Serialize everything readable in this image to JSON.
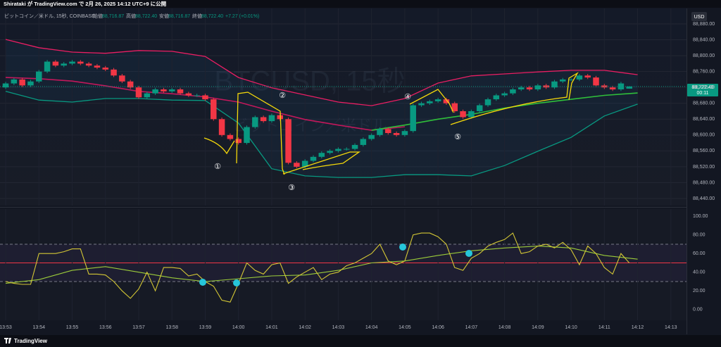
{
  "header": {
    "published": "Shirataki が TradingView.com で 2月 26, 2025 14:12 UTC+9 に公開",
    "symbol": "ビットコイン／米ドル, 15秒, COINBASE",
    "open_label": "始値",
    "open": "88,716.87",
    "high_label": "高値",
    "high": "88,722.40",
    "low_label": "安値",
    "low": "88,716.87",
    "close_label": "終値",
    "close": "88,722.40",
    "change": "+7.27 (+0.01%)",
    "watermark": "BTCUSD, 15秒",
    "watermark_sub": "ビットコイン／米ドル",
    "currency": "USD",
    "last_price": "88,722.40",
    "countdown": "00:11",
    "footer": "TradingView"
  },
  "annotations": [
    "①",
    "②",
    "③",
    "④",
    "⑤"
  ],
  "chart_data": [
    {
      "type": "candlestick",
      "up_color": "#089981",
      "down_color": "#f23645",
      "x": [
        833,
        833.25,
        833.5,
        833.75,
        834,
        834.25,
        834.5,
        834.75,
        835,
        835.25,
        835.5,
        835.75,
        836,
        836.25,
        836.5,
        836.75,
        837,
        837.25,
        837.5,
        837.75,
        838,
        838.25,
        838.5,
        838.75,
        839,
        839.25,
        839.5,
        839.75,
        840,
        840.25,
        840.5,
        840.75,
        841,
        841.25,
        841.5,
        841.75,
        842,
        842.25,
        842.5,
        842.75,
        843,
        843.25,
        843.5,
        843.75,
        844,
        844.25,
        844.5,
        844.75,
        845,
        845.25,
        845.5,
        845.75,
        846,
        846.25,
        846.5,
        846.75,
        847,
        847.25,
        847.5,
        847.75,
        848,
        848.25,
        848.5,
        848.75,
        849,
        849.25,
        849.5,
        849.75,
        850,
        850.25,
        850.5,
        850.75,
        851,
        851.25,
        851.5,
        851.75
      ],
      "candles": [
        [
          88720,
          88734,
          88716,
          88730
        ],
        [
          88730,
          88744,
          88726,
          88740
        ],
        [
          88740,
          88744,
          88721,
          88725
        ],
        [
          88725,
          88739,
          88721,
          88735
        ],
        [
          88735,
          88764,
          88731,
          88760
        ],
        [
          88760,
          88789,
          88756,
          88785
        ],
        [
          88785,
          88789,
          88771,
          88775
        ],
        [
          88775,
          88784,
          88771,
          88780
        ],
        [
          88780,
          88789,
          88776,
          88785
        ],
        [
          88785,
          88789,
          88776,
          88780
        ],
        [
          88780,
          88784,
          88771,
          88775
        ],
        [
          88775,
          88779,
          88766,
          88770
        ],
        [
          88770,
          88774,
          88761,
          88765
        ],
        [
          88765,
          88769,
          88746,
          88750
        ],
        [
          88750,
          88754,
          88731,
          88735
        ],
        [
          88735,
          88739,
          88716,
          88720
        ],
        [
          88720,
          88724,
          88691,
          88695
        ],
        [
          88695,
          88709,
          88691,
          88705
        ],
        [
          88705,
          88719,
          88701,
          88715
        ],
        [
          88715,
          88719,
          88706,
          88710
        ],
        [
          88710,
          88719,
          88706,
          88715
        ],
        [
          88715,
          88719,
          88701,
          88705
        ],
        [
          88705,
          88709,
          88696,
          88700
        ],
        [
          88700,
          88704,
          88696,
          88700
        ],
        [
          88700,
          88704,
          88686,
          88690
        ],
        [
          88690,
          88694,
          88636,
          88640
        ],
        [
          88640,
          88644,
          88596,
          88600
        ],
        [
          88600,
          88604,
          88586,
          88590
        ],
        [
          88590,
          88594,
          88576,
          88580
        ],
        [
          88580,
          88624,
          88576,
          88620
        ],
        [
          88620,
          88649,
          88616,
          88645
        ],
        [
          88645,
          88649,
          88631,
          88635
        ],
        [
          88635,
          88654,
          88631,
          88650
        ],
        [
          88650,
          88654,
          88636,
          88640
        ],
        [
          88640,
          88644,
          88526,
          88530
        ],
        [
          88530,
          88534,
          88516,
          88520
        ],
        [
          88520,
          88539,
          88516,
          88535
        ],
        [
          88535,
          88549,
          88531,
          88545
        ],
        [
          88545,
          88559,
          88541,
          88555
        ],
        [
          88555,
          88564,
          88551,
          88560
        ],
        [
          88560,
          88569,
          88556,
          88565
        ],
        [
          88565,
          88569,
          88561,
          88565
        ],
        [
          88565,
          88579,
          88561,
          88575
        ],
        [
          88575,
          88594,
          88571,
          88590
        ],
        [
          88590,
          88604,
          88586,
          88600
        ],
        [
          88600,
          88619,
          88596,
          88615
        ],
        [
          88615,
          88619,
          88601,
          88605
        ],
        [
          88605,
          88609,
          88596,
          88600
        ],
        [
          88600,
          88614,
          88596,
          88610
        ],
        [
          88610,
          88679,
          88606,
          88675
        ],
        [
          88675,
          88684,
          88671,
          88680
        ],
        [
          88680,
          88689,
          88676,
          88685
        ],
        [
          88685,
          88694,
          88681,
          88690
        ],
        [
          88690,
          88694,
          88676,
          88680
        ],
        [
          88680,
          88684,
          88656,
          88660
        ],
        [
          88660,
          88664,
          88641,
          88645
        ],
        [
          88645,
          88664,
          88641,
          88660
        ],
        [
          88660,
          88679,
          88656,
          88675
        ],
        [
          88675,
          88694,
          88671,
          88690
        ],
        [
          88690,
          88704,
          88686,
          88700
        ],
        [
          88700,
          88709,
          88696,
          88705
        ],
        [
          88705,
          88719,
          88701,
          88715
        ],
        [
          88715,
          88724,
          88711,
          88720
        ],
        [
          88720,
          88724,
          88711,
          88715
        ],
        [
          88715,
          88729,
          88711,
          88725
        ],
        [
          88725,
          88729,
          88716,
          88720
        ],
        [
          88720,
          88739,
          88716,
          88735
        ],
        [
          88735,
          88744,
          88731,
          88740
        ],
        [
          88740,
          88744,
          88736,
          88740
        ],
        [
          88740,
          88754,
          88736,
          88750
        ],
        [
          88750,
          88754,
          88741,
          88745
        ],
        [
          88745,
          88749,
          88721,
          88725
        ],
        [
          88725,
          88729,
          88716,
          88720
        ],
        [
          88720,
          88724,
          88711,
          88715
        ],
        [
          88715,
          88734,
          88711,
          88730
        ],
        [
          88716.87,
          88722.4,
          88716.87,
          88722.4
        ]
      ],
      "bands": {
        "x": [
          833,
          834,
          835,
          836,
          837,
          838,
          839,
          840,
          841,
          842,
          843,
          844,
          845,
          846,
          847,
          848,
          849,
          850,
          851,
          852
        ],
        "upper": [
          88841,
          88820,
          88809,
          88806,
          88813,
          88811,
          88798,
          88745,
          88719,
          88701,
          88683,
          88674,
          88692,
          88731,
          88749,
          88754,
          88759,
          88763,
          88763,
          88752
        ],
        "lower": [
          88710,
          88688,
          88683,
          88692,
          88692,
          88688,
          88687,
          88630,
          88515,
          88497,
          88493,
          88493,
          88500,
          88500,
          88497,
          88523,
          88559,
          88594,
          88648,
          88678
        ],
        "upper_color": "#e91e63",
        "lower_color": "#089981",
        "basis_x": [
          833,
          834,
          835,
          836,
          837,
          838,
          839,
          840,
          841,
          842,
          843,
          844,
          845
        ],
        "basis": [
          88745,
          88742,
          88736,
          88724,
          88710,
          88704,
          88696,
          88683,
          88660,
          88639,
          88625,
          88612,
          88621
        ],
        "basis_color": "#c2185b",
        "ma_x": [
          844,
          845,
          846,
          847,
          848,
          849,
          850,
          851,
          852
        ],
        "ma": [
          88612,
          88625,
          88640,
          88652,
          88668,
          88680,
          88690,
          88700,
          88706
        ],
        "ma_color": "#2fbf3a"
      },
      "xlim": [
        832.83,
        853.47
      ],
      "ylim": [
        88422.3,
        88919
      ],
      "yticks": [
        {
          "value": 88440,
          "label": "88,440.00"
        },
        {
          "value": 88480,
          "label": "88,480.00"
        },
        {
          "value": 88520,
          "label": "88,520.00"
        },
        {
          "value": 88560,
          "label": "88,560.00"
        },
        {
          "value": 88600,
          "label": "88,600.00"
        },
        {
          "value": 88640,
          "label": "88,640.00"
        },
        {
          "value": 88680,
          "label": "88,680.00"
        },
        {
          "value": 88720,
          "label": "88,720.00"
        },
        {
          "value": 88760,
          "label": "88,760.00"
        },
        {
          "value": 88800,
          "label": "88,800.00"
        },
        {
          "value": 88840,
          "label": "88,840.00"
        },
        {
          "value": 88880,
          "label": "88,880.00"
        }
      ],
      "grid": true
    },
    {
      "type": "line",
      "color": "#d4c735",
      "ma_color": "#9ccc3a",
      "x": [
        833,
        833.25,
        833.5,
        833.75,
        834,
        834.25,
        834.5,
        834.75,
        835,
        835.25,
        835.5,
        835.75,
        836,
        836.25,
        836.5,
        836.75,
        837,
        837.25,
        837.5,
        837.75,
        838,
        838.25,
        838.5,
        838.75,
        839,
        839.25,
        839.5,
        839.75,
        840,
        840.25,
        840.5,
        840.75,
        841,
        841.25,
        841.5,
        841.75,
        842,
        842.25,
        842.5,
        842.75,
        843,
        843.25,
        843.5,
        843.75,
        844,
        844.25,
        844.5,
        844.75,
        845,
        845.25,
        845.5,
        845.75,
        846,
        846.25,
        846.5,
        846.75,
        847,
        847.25,
        847.5,
        847.75,
        848,
        848.25,
        848.5,
        848.75,
        849,
        849.25,
        849.5,
        849.75,
        850,
        850.25,
        850.5,
        850.75,
        851,
        851.25,
        851.5,
        851.75
      ],
      "values": [
        30,
        28,
        27,
        27,
        60,
        60,
        60,
        62,
        65,
        65,
        38,
        38,
        37,
        30,
        20,
        12,
        22,
        40,
        20,
        45,
        45,
        44,
        36,
        38,
        30,
        25,
        10,
        8,
        28,
        50,
        42,
        38,
        48,
        50,
        28,
        35,
        40,
        45,
        32,
        38,
        40,
        47,
        50,
        55,
        60,
        70,
        52,
        48,
        52,
        80,
        82,
        82,
        78,
        70,
        45,
        42,
        55,
        60,
        68,
        72,
        75,
        82,
        60,
        62,
        68,
        70,
        66,
        72,
        64,
        48,
        68,
        60,
        45,
        38,
        60,
        50
      ],
      "ma_x": [
        833,
        834,
        835,
        836,
        837,
        838,
        839,
        840,
        841,
        842,
        843,
        844,
        845,
        846,
        847,
        848,
        849,
        850,
        851,
        852
      ],
      "ma": [
        28,
        32,
        42,
        46,
        40,
        34,
        30,
        33,
        36,
        37,
        42,
        50,
        52,
        58,
        63,
        66,
        68,
        66,
        58,
        54
      ],
      "band": [
        30,
        70
      ],
      "midline": 50,
      "xlim": [
        832.83,
        853.47
      ],
      "ylim": [
        -11.5,
        107.7
      ],
      "yticks": [
        {
          "value": 0,
          "label": "0.00"
        },
        {
          "value": 20,
          "label": "20.00"
        },
        {
          "value": 40,
          "label": "40.00"
        },
        {
          "value": 60,
          "label": "60.00"
        },
        {
          "value": 80,
          "label": "80.00"
        },
        {
          "value": 100,
          "label": "100.00"
        }
      ],
      "xticks": [
        {
          "value": 833,
          "label": "13:53"
        },
        {
          "value": 834,
          "label": "13:54"
        },
        {
          "value": 835,
          "label": "13:55"
        },
        {
          "value": 836,
          "label": "13:56"
        },
        {
          "value": 837,
          "label": "13:57"
        },
        {
          "value": 838,
          "label": "13:58"
        },
        {
          "value": 839,
          "label": "13:59"
        },
        {
          "value": 840,
          "label": "14:00"
        },
        {
          "value": 841,
          "label": "14:01"
        },
        {
          "value": 842,
          "label": "14:02"
        },
        {
          "value": 843,
          "label": "14:03"
        },
        {
          "value": 844,
          "label": "14:04"
        },
        {
          "value": 845,
          "label": "14:05"
        },
        {
          "value": 846,
          "label": "14:06"
        },
        {
          "value": 847,
          "label": "14:07"
        },
        {
          "value": 848,
          "label": "14:08"
        },
        {
          "value": 849,
          "label": "14:09"
        },
        {
          "value": 850,
          "label": "14:10"
        },
        {
          "value": 851,
          "label": "14:11"
        },
        {
          "value": 852,
          "label": "14:12"
        },
        {
          "value": 853,
          "label": "14:13"
        }
      ]
    }
  ]
}
